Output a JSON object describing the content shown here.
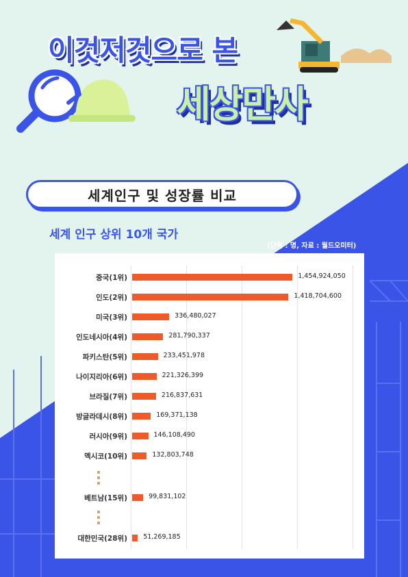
{
  "header": {
    "title_line1": "이것저것으로 본",
    "title_line2": "세상만사"
  },
  "section_title": "세계인구 및 성장률 비교",
  "chart_title": "세계 인구 상위 10개 국가",
  "unit_note": "(단위 : 명, 자료 : 월드오미터)",
  "colors": {
    "accent": "#3b54e8",
    "bar": "#ef5a2b",
    "background": "#e3f4ef"
  },
  "icons": [
    "magnifier-icon",
    "hard-hat-icon",
    "excavator-icon"
  ],
  "chart_data": {
    "type": "bar",
    "orientation": "horizontal",
    "title": "세계 인구 상위 10개 국가",
    "categories": [
      "중국(1위)",
      "인도(2위)",
      "미국(3위)",
      "인도네시아(4위)",
      "파키스탄(5위)",
      "나이지리아(6위)",
      "브라질(7위)",
      "방글라데시(8위)",
      "러시아(9위)",
      "멕시코(10위)",
      "베트남(15위)",
      "대한민국(28위)"
    ],
    "values": [
      1454924050,
      1418704600,
      336480027,
      281790337,
      233451978,
      221326399,
      216837631,
      169371138,
      146108490,
      132803748,
      99831102,
      51269185
    ],
    "value_labels": [
      "1,454,924,050",
      "1,418,704,600",
      "336,480,027",
      "281,790,337",
      "233,451,978",
      "221,326,399",
      "216,837,631",
      "169,371,138",
      "146,108,490",
      "132,803,748",
      "99,831,102",
      "51,269,185"
    ],
    "xlim": [
      0,
      2000000000
    ],
    "grid": true,
    "legend": "none"
  }
}
